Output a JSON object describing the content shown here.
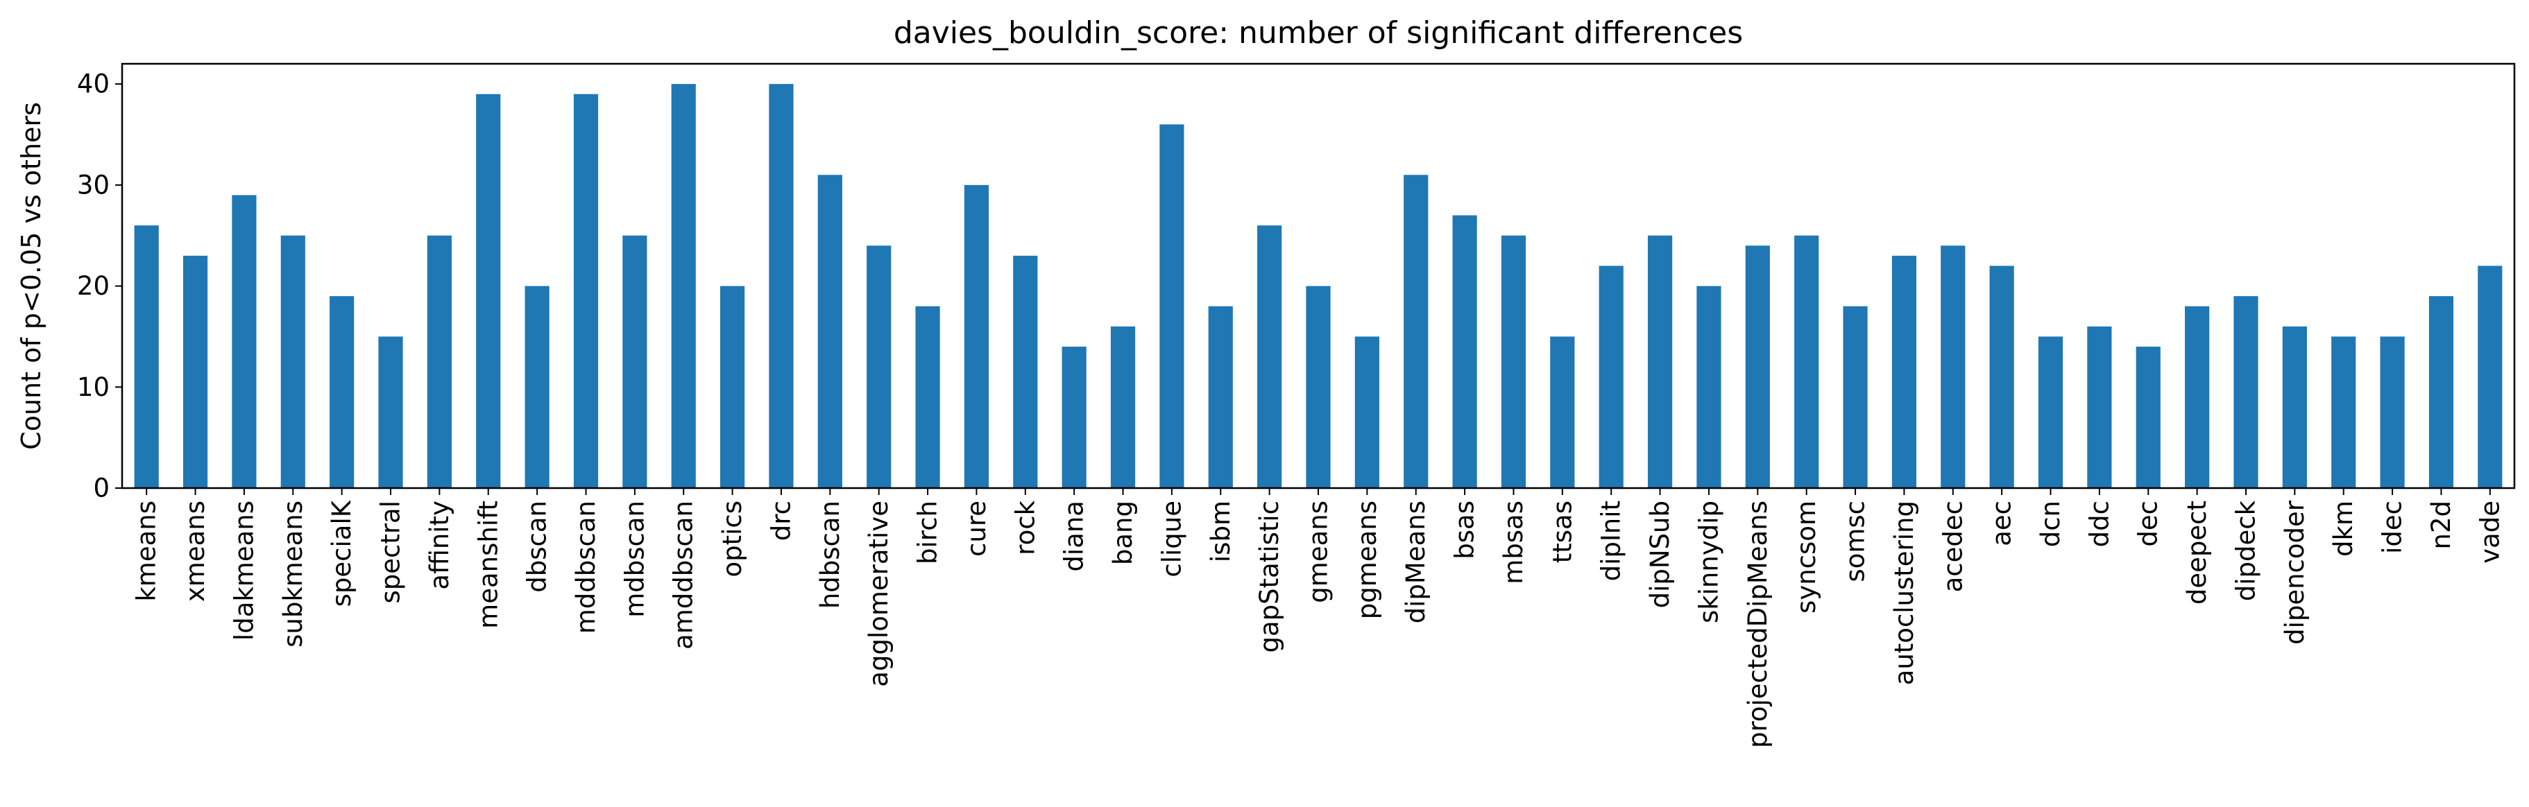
{
  "chart_data": {
    "type": "bar",
    "title": "davies_bouldin_score: number of significant differences",
    "xlabel": "",
    "ylabel": "Count of p<0.05 vs others",
    "ylim": [
      0,
      42
    ],
    "yticks": [
      0,
      10,
      20,
      30,
      40
    ],
    "grid": false,
    "bar_color": "#1f77b4",
    "categories": [
      "kmeans",
      "xmeans",
      "ldakmeans",
      "subkmeans",
      "specialK",
      "spectral",
      "affinity",
      "meanshift",
      "dbscan",
      "mddbscan",
      "mdbscan",
      "amddbscan",
      "optics",
      "drc",
      "hdbscan",
      "agglomerative",
      "birch",
      "cure",
      "rock",
      "diana",
      "bang",
      "clique",
      "isbm",
      "gapStatistic",
      "gmeans",
      "pgmeans",
      "dipMeans",
      "bsas",
      "mbsas",
      "ttsas",
      "dipInit",
      "dipNSub",
      "skinnydip",
      "projectedDipMeans",
      "syncsom",
      "somsc",
      "autoclustering",
      "acedec",
      "aec",
      "dcn",
      "ddc",
      "dec",
      "deepect",
      "dipdeck",
      "dipencoder",
      "dkm",
      "idec",
      "n2d",
      "vade"
    ],
    "values": [
      26,
      23,
      29,
      25,
      19,
      15,
      25,
      39,
      20,
      39,
      25,
      40,
      20,
      40,
      31,
      24,
      18,
      30,
      23,
      14,
      16,
      36,
      18,
      26,
      20,
      15,
      31,
      27,
      25,
      15,
      22,
      25,
      20,
      24,
      25,
      18,
      23,
      24,
      22,
      15,
      16,
      14,
      18,
      19,
      16,
      15,
      15,
      19,
      22
    ]
  }
}
